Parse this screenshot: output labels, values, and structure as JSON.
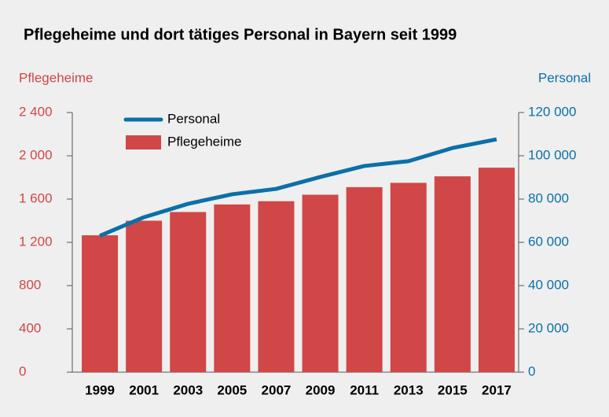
{
  "chart_data": {
    "type": "bar",
    "title": "Pflegeheime und dort tätiges Personal in Bayern seit 1999",
    "y_label": "Pflegeheime",
    "y2_label": "Personal",
    "categories": [
      "1999",
      "2001",
      "2003",
      "2005",
      "2007",
      "2009",
      "2011",
      "2013",
      "2015",
      "2017"
    ],
    "series": [
      {
        "name": "Pflegeheime",
        "type": "bar",
        "color": "#d14646",
        "values": [
          1265,
          1400,
          1480,
          1550,
          1580,
          1640,
          1710,
          1750,
          1810,
          1890
        ]
      },
      {
        "name": "Personal",
        "type": "line",
        "axis": "y2",
        "color": "#0b70a8",
        "values": [
          63000,
          71600,
          77800,
          82200,
          84700,
          90200,
          95300,
          97500,
          103600,
          107600
        ]
      }
    ],
    "ylim": [
      0,
      2400
    ],
    "yticks": [
      0,
      400,
      800,
      {
        "value": 1200,
        "label": "1 200"
      },
      {
        "value": 1600,
        "label": "1 600"
      },
      {
        "value": 2000,
        "label": "2 000"
      },
      {
        "value": 2400,
        "label": "2 400"
      }
    ],
    "y2lim": [
      0,
      120000
    ],
    "y2ticks": [
      0,
      {
        "value": 20000,
        "label": "20 000"
      },
      {
        "value": 40000,
        "label": "40 000"
      },
      {
        "value": 60000,
        "label": "60 000"
      },
      {
        "value": 80000,
        "label": "80 000"
      },
      {
        "value": 100000,
        "label": "100 000"
      },
      {
        "value": 120000,
        "label": "120 000"
      }
    ],
    "legend": "top-left"
  }
}
